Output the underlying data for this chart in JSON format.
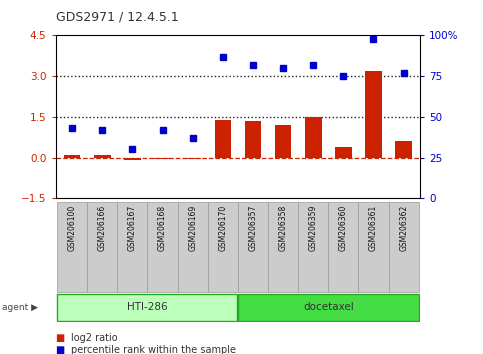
{
  "title": "GDS2971 / 12.4.5.1",
  "samples": [
    "GSM206100",
    "GSM206166",
    "GSM206167",
    "GSM206168",
    "GSM206169",
    "GSM206170",
    "GSM206357",
    "GSM206358",
    "GSM206359",
    "GSM206360",
    "GSM206361",
    "GSM206362"
  ],
  "log2_ratio": [
    0.1,
    0.08,
    -0.1,
    -0.05,
    -0.05,
    1.4,
    1.35,
    1.2,
    1.5,
    0.4,
    3.2,
    0.6
  ],
  "percentile_rank": [
    43,
    42,
    30,
    42,
    37,
    87,
    82,
    80,
    82,
    75,
    98,
    77
  ],
  "ylim_left": [
    -1.5,
    4.5
  ],
  "ylim_right": [
    0,
    100
  ],
  "n_hti": 6,
  "bar_color": "#cc2200",
  "dot_color": "#0000cc",
  "hti_color": "#bbffbb",
  "doc_color": "#44dd44",
  "hline_color": "#cc2200",
  "dotted_line_color": "#222222",
  "plot_bg": "#ffffff",
  "label_bg": "#cccccc",
  "agent_arrow": "▶"
}
